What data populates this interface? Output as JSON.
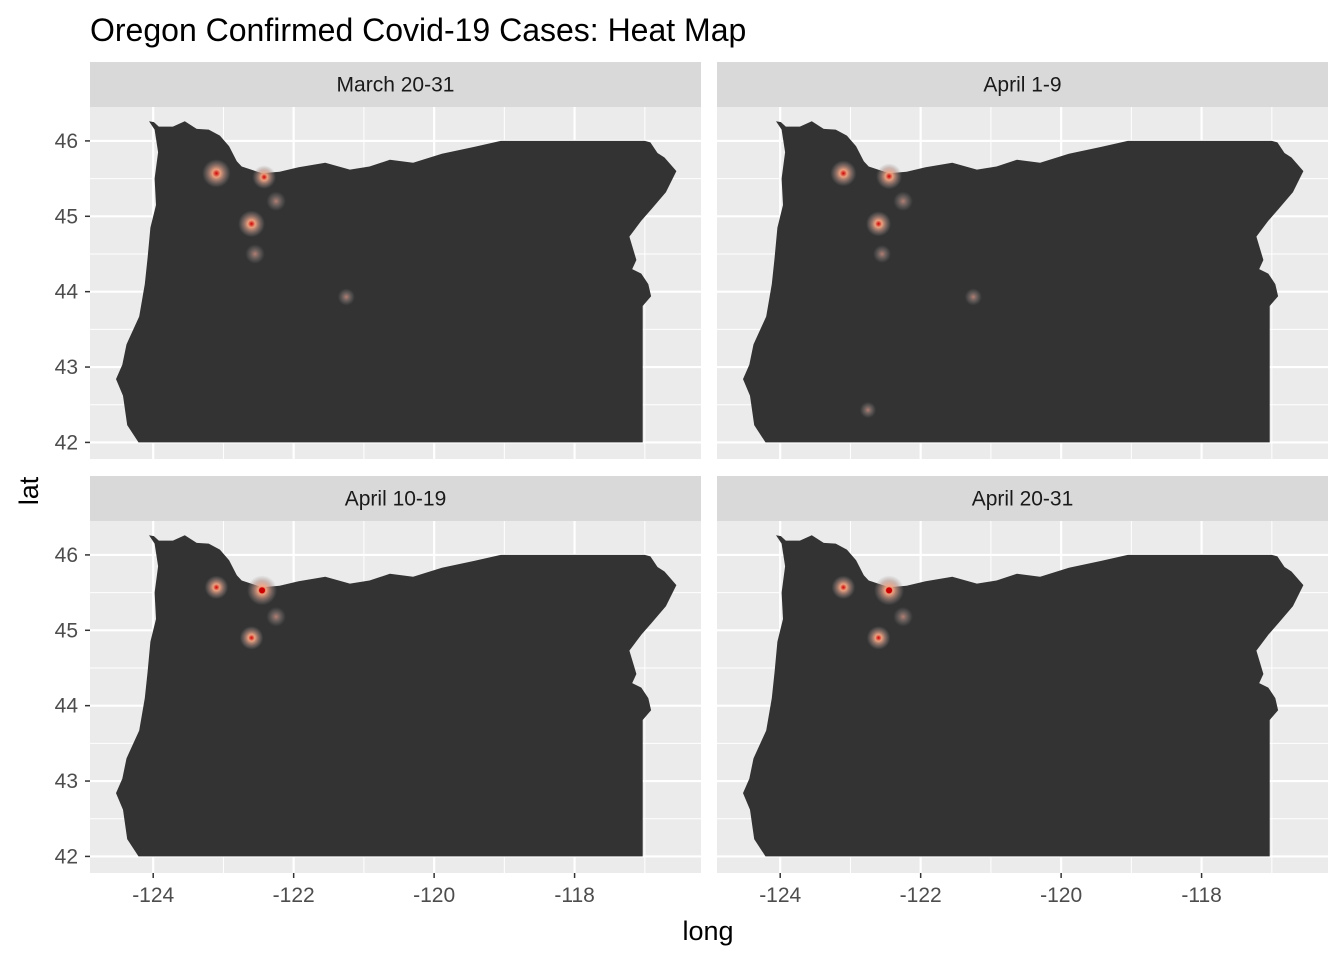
{
  "chart_data": {
    "type": "heatmap",
    "title": "Oregon Confirmed Covid-19 Cases: Heat Map",
    "xlabel": "long",
    "ylabel": "lat",
    "xlim": [
      -124.9,
      -116.2
    ],
    "ylim": [
      41.78,
      46.45
    ],
    "x_ticks": [
      -124,
      -122,
      -120,
      -118
    ],
    "x_tick_labels": [
      "-124",
      "-122",
      "-120",
      "-118"
    ],
    "y_ticks": [
      42,
      43,
      44,
      45,
      46
    ],
    "y_tick_labels": [
      "42",
      "43",
      "44",
      "45",
      "46"
    ],
    "grid": true,
    "colors": {
      "panel_background": "#ebebeb",
      "grid": "#ffffff",
      "strip_background": "#d9d9d9",
      "state_fill": "#333333",
      "heat_low": "#8c8c8c",
      "heat_mid": "#f4a582",
      "heat_high": "#cc0000"
    },
    "panels": [
      {
        "label": "March 20-31",
        "points": [
          {
            "x": -123.1,
            "y": 45.57,
            "intensity": 0.9
          },
          {
            "x": -122.42,
            "y": 45.52,
            "intensity": 0.6
          },
          {
            "x": -122.25,
            "y": 45.2,
            "intensity": 0.35
          },
          {
            "x": -122.6,
            "y": 44.9,
            "intensity": 0.8
          },
          {
            "x": -122.55,
            "y": 44.5,
            "intensity": 0.35
          },
          {
            "x": -121.25,
            "y": 43.93,
            "intensity": 0.2
          }
        ]
      },
      {
        "label": "April 1-9",
        "points": [
          {
            "x": -123.1,
            "y": 45.57,
            "intensity": 0.75
          },
          {
            "x": -122.45,
            "y": 45.53,
            "intensity": 0.75
          },
          {
            "x": -122.25,
            "y": 45.2,
            "intensity": 0.35
          },
          {
            "x": -122.6,
            "y": 44.9,
            "intensity": 0.7
          },
          {
            "x": -122.55,
            "y": 44.5,
            "intensity": 0.25
          },
          {
            "x": -121.25,
            "y": 43.93,
            "intensity": 0.2
          },
          {
            "x": -122.75,
            "y": 42.43,
            "intensity": 0.15
          }
        ]
      },
      {
        "label": "April 10-19",
        "points": [
          {
            "x": -123.1,
            "y": 45.57,
            "intensity": 0.6
          },
          {
            "x": -122.45,
            "y": 45.53,
            "intensity": 1.0
          },
          {
            "x": -122.25,
            "y": 45.18,
            "intensity": 0.35
          },
          {
            "x": -122.6,
            "y": 44.9,
            "intensity": 0.6
          }
        ]
      },
      {
        "label": "April 20-31",
        "points": [
          {
            "x": -123.1,
            "y": 45.57,
            "intensity": 0.6
          },
          {
            "x": -122.45,
            "y": 45.53,
            "intensity": 1.0
          },
          {
            "x": -122.25,
            "y": 45.18,
            "intensity": 0.35
          },
          {
            "x": -122.6,
            "y": 44.9,
            "intensity": 0.6
          }
        ]
      }
    ],
    "state_outline": [
      [
        -124.06,
        46.26
      ],
      [
        -123.99,
        46.25
      ],
      [
        -123.92,
        46.19
      ],
      [
        -123.72,
        46.19
      ],
      [
        -123.55,
        46.26
      ],
      [
        -123.38,
        46.16
      ],
      [
        -123.21,
        46.15
      ],
      [
        -123.05,
        46.07
      ],
      [
        -122.92,
        45.93
      ],
      [
        -122.81,
        45.73
      ],
      [
        -122.74,
        45.66
      ],
      [
        -122.45,
        45.57
      ],
      [
        -122.2,
        45.59
      ],
      [
        -121.93,
        45.65
      ],
      [
        -121.55,
        45.71
      ],
      [
        -121.2,
        45.62
      ],
      [
        -120.92,
        45.66
      ],
      [
        -120.63,
        45.75
      ],
      [
        -120.3,
        45.71
      ],
      [
        -119.89,
        45.83
      ],
      [
        -119.43,
        45.92
      ],
      [
        -119.05,
        46.0
      ],
      [
        -118.98,
        46.0
      ],
      [
        -117.0,
        46.0
      ],
      [
        -116.92,
        45.98
      ],
      [
        -116.82,
        45.84
      ],
      [
        -116.72,
        45.78
      ],
      [
        -116.55,
        45.6
      ],
      [
        -116.7,
        45.32
      ],
      [
        -116.9,
        45.1
      ],
      [
        -117.05,
        44.94
      ],
      [
        -117.22,
        44.73
      ],
      [
        -117.12,
        44.42
      ],
      [
        -117.18,
        44.3
      ],
      [
        -117.05,
        44.24
      ],
      [
        -116.95,
        44.1
      ],
      [
        -116.91,
        43.94
      ],
      [
        -117.03,
        43.81
      ],
      [
        -117.03,
        42.0
      ],
      [
        -124.21,
        42.0
      ],
      [
        -124.37,
        42.23
      ],
      [
        -124.43,
        42.62
      ],
      [
        -124.53,
        42.84
      ],
      [
        -124.44,
        43.03
      ],
      [
        -124.38,
        43.3
      ],
      [
        -124.2,
        43.67
      ],
      [
        -124.12,
        44.1
      ],
      [
        -124.08,
        44.45
      ],
      [
        -124.04,
        44.85
      ],
      [
        -123.96,
        45.15
      ],
      [
        -123.98,
        45.5
      ],
      [
        -123.93,
        45.85
      ],
      [
        -123.98,
        46.15
      ],
      [
        -124.06,
        46.26
      ]
    ]
  }
}
